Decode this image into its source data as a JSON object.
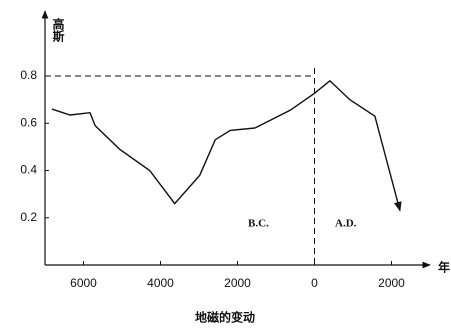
{
  "chart_data": {
    "type": "line",
    "title": "地磁的变动",
    "y_label": "高斯",
    "x_label": "年",
    "annotations": [
      "B.C.",
      "A.D."
    ],
    "x": [
      -6820,
      -6350,
      -5830,
      -5700,
      -5060,
      -4280,
      -3630,
      -2980,
      -2580,
      -2190,
      -1545,
      -635,
      0,
      400,
      920,
      1570,
      2220
    ],
    "series": [
      {
        "color": "#111111",
        "values": [
          0.66,
          0.635,
          0.645,
          0.59,
          0.49,
          0.4,
          0.26,
          0.38,
          0.53,
          0.57,
          0.58,
          0.655,
          0.727,
          0.78,
          0.7,
          0.63,
          0.23
        ]
      }
    ],
    "xlim": [
      -7000,
      3000
    ],
    "ylim": [
      0,
      1.05
    ],
    "xticks": [
      {
        "value": -6000,
        "label": "6000"
      },
      {
        "value": -4000,
        "label": "4000"
      },
      {
        "value": -2000,
        "label": "2000"
      },
      0,
      2000
    ],
    "yticks": [
      0.2,
      0.4,
      0.6,
      0.8
    ],
    "reference_lines": {
      "y": 0.8,
      "x": 0
    },
    "grid": false
  }
}
